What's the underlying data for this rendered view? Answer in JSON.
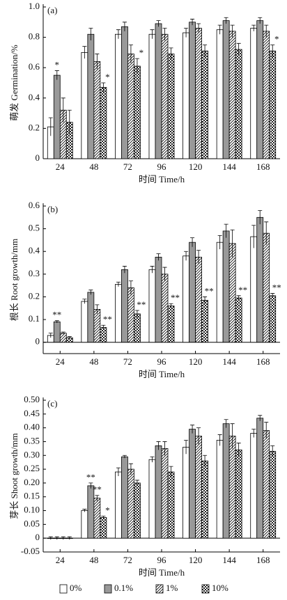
{
  "chart_data": [
    {
      "type": "bar",
      "title": "(a)",
      "ylabel": "萌发 Germination/%",
      "xlabel": "时间 Time/h",
      "categories": [
        "24",
        "48",
        "72",
        "96",
        "120",
        "144",
        "168"
      ],
      "ylim": [
        0,
        1.0
      ],
      "yticks": [
        0,
        0.2,
        0.4,
        0.6,
        0.8,
        {
          "value": 1.0,
          "label": "1.0"
        }
      ],
      "series": [
        {
          "color": "#ffffff",
          "values": [
            0.21,
            0.7,
            0.82,
            0.82,
            0.83,
            0.85,
            0.86
          ],
          "errors": [
            0.06,
            0.04,
            0.03,
            0.03,
            0.03,
            0.03,
            0.02
          ]
        },
        {
          "color": "#999999",
          "values": [
            0.55,
            0.82,
            0.87,
            0.89,
            0.9,
            0.91,
            0.91
          ],
          "errors": [
            0.03,
            0.04,
            0.03,
            0.02,
            0.02,
            0.02,
            0.02
          ],
          "annotations": [
            "*",
            null,
            null,
            null,
            null,
            null,
            null
          ]
        },
        {
          "color": "#ffffff",
          "values": [
            0.32,
            0.64,
            0.69,
            0.82,
            0.86,
            0.84,
            0.84
          ],
          "errors": [
            0.08,
            0.05,
            0.06,
            0.04,
            0.03,
            0.04,
            0.04
          ]
        },
        {
          "color": "#ffffff",
          "values": [
            0.24,
            0.47,
            0.61,
            0.69,
            0.71,
            0.72,
            0.71
          ],
          "errors": [
            0.08,
            0.03,
            0.05,
            0.04,
            0.04,
            0.04,
            0.04
          ],
          "annotations": [
            null,
            "*",
            "*",
            null,
            null,
            null,
            "*"
          ]
        }
      ]
    },
    {
      "type": "bar",
      "title": "(b)",
      "ylabel": "根长 Root growth/mm",
      "xlabel": "时间 Time/h",
      "categories": [
        "24",
        "48",
        "72",
        "96",
        "120",
        "144",
        "168"
      ],
      "ylim": [
        -0.05,
        0.6
      ],
      "yticks": [
        0,
        0.1,
        0.2,
        0.3,
        0.4,
        0.5,
        0.6
      ],
      "series": [
        {
          "color": "#ffffff",
          "values": [
            0.03,
            0.18,
            0.255,
            0.32,
            0.38,
            0.44,
            0.465
          ],
          "errors": [
            0.01,
            0.01,
            0.01,
            0.015,
            0.02,
            0.03,
            0.05
          ]
        },
        {
          "color": "#999999",
          "values": [
            0.09,
            0.22,
            0.32,
            0.375,
            0.44,
            0.49,
            0.55
          ],
          "errors": [
            0.005,
            0.01,
            0.015,
            0.015,
            0.02,
            0.03,
            0.03
          ],
          "annotations": [
            "**",
            null,
            null,
            null,
            null,
            null,
            null
          ]
        },
        {
          "color": "#ffffff",
          "values": [
            0.04,
            0.145,
            0.24,
            0.3,
            0.375,
            0.435,
            0.48
          ],
          "errors": [
            0.005,
            0.02,
            0.03,
            0.03,
            0.03,
            0.06,
            0.05
          ]
        },
        {
          "color": "#ffffff",
          "values": [
            0.02,
            0.065,
            0.125,
            0.16,
            0.185,
            0.195,
            0.205
          ],
          "errors": [
            0.005,
            0.01,
            0.015,
            0.01,
            0.015,
            0.01,
            0.01
          ],
          "annotations": [
            null,
            "**",
            "**",
            "**",
            "**",
            "**",
            "**"
          ]
        }
      ]
    },
    {
      "type": "bar",
      "title": "(c)",
      "ylabel": "芽长 Shoot growth/mm",
      "xlabel": "时间 Time/h",
      "categories": [
        "24",
        "48",
        "72",
        "96",
        "120",
        "144",
        "168"
      ],
      "ylim": [
        -0.05,
        0.5
      ],
      "yticks": [
        -0.05,
        0,
        0.05,
        {
          "value": 0.1,
          "label": "0.10"
        },
        0.15,
        {
          "value": 0.2,
          "label": "0.20"
        },
        0.25,
        {
          "value": 0.3,
          "label": "0.30"
        },
        0.35,
        {
          "value": 0.4,
          "label": "0.40"
        },
        0.45,
        {
          "value": 0.5,
          "label": "0.50"
        }
      ],
      "series": [
        {
          "name": "0%",
          "color": "#ffffff",
          "values": [
            0,
            0.1,
            0.24,
            0.285,
            0.33,
            0.355,
            0.38
          ],
          "errors": [
            0.005,
            0.005,
            0.015,
            0.01,
            0.025,
            0.02,
            0.015
          ]
        },
        {
          "name": "0.1%",
          "color": "#999999",
          "values": [
            0,
            0.19,
            0.295,
            0.335,
            0.395,
            0.415,
            0.435
          ],
          "errors": [
            0.005,
            0.01,
            0.005,
            0.015,
            0.015,
            0.015,
            0.01
          ],
          "annotations": [
            null,
            "**",
            null,
            null,
            null,
            null,
            null
          ]
        },
        {
          "name": "1%",
          "color": "#ffffff",
          "values": [
            0,
            0.145,
            0.25,
            0.325,
            0.37,
            0.37,
            0.39
          ],
          "errors": [
            0.005,
            0.01,
            0.02,
            0.025,
            0.03,
            0.045,
            0.03
          ],
          "annotations": [
            null,
            "**",
            null,
            null,
            null,
            null,
            null
          ]
        },
        {
          "name": "10%",
          "color": "#ffffff",
          "values": [
            0,
            0.075,
            0.2,
            0.24,
            0.28,
            0.32,
            0.315
          ],
          "errors": [
            0.005,
            0.005,
            0.01,
            0.02,
            0.02,
            0.025,
            0.02
          ],
          "annotations": [
            null,
            "*",
            null,
            null,
            null,
            null,
            null
          ]
        }
      ]
    }
  ]
}
